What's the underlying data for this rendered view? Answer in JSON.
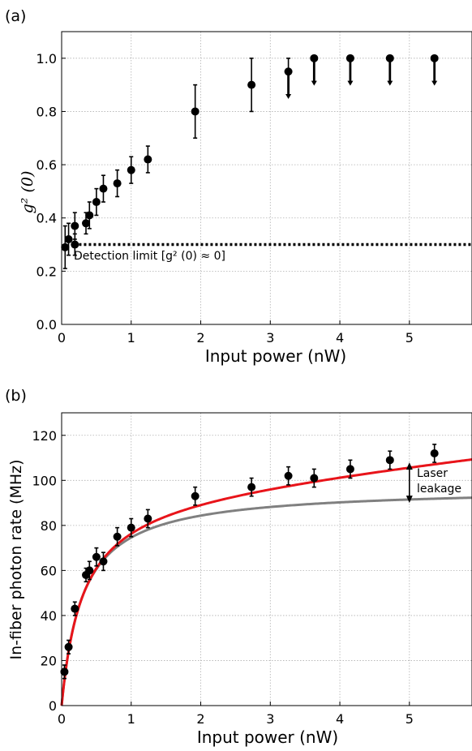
{
  "colors": {
    "axis": "#000000",
    "grid": "#b0b0b0",
    "marker": "#000000",
    "fit_total": "#e8141a",
    "fit_single": "#808080"
  },
  "chart_data": [
    {
      "panel_label": "(a)",
      "type": "scatter",
      "xlabel": "Input power (nW)",
      "ylabel": "g² (0)",
      "xlim": [
        0,
        5.9
      ],
      "ylim": [
        0.0,
        1.1
      ],
      "xticks": [
        "0",
        "1",
        "2",
        "3",
        "4",
        "5"
      ],
      "yticks": [
        "0.0",
        "0.2",
        "0.4",
        "0.6",
        "0.8",
        "1.0"
      ],
      "grid": true,
      "points": [
        {
          "x": 0.05,
          "y": 0.29,
          "err": 0.08
        },
        {
          "x": 0.1,
          "y": 0.32,
          "err": 0.06
        },
        {
          "x": 0.19,
          "y": 0.37,
          "err": 0.05
        },
        {
          "x": 0.19,
          "y": 0.3,
          "err": 0.04
        },
        {
          "x": 0.35,
          "y": 0.38,
          "err": 0.04
        },
        {
          "x": 0.4,
          "y": 0.41,
          "err": 0.05
        },
        {
          "x": 0.5,
          "y": 0.46,
          "err": 0.05
        },
        {
          "x": 0.6,
          "y": 0.51,
          "err": 0.05
        },
        {
          "x": 0.8,
          "y": 0.53,
          "err": 0.05
        },
        {
          "x": 1.0,
          "y": 0.58,
          "err": 0.05
        },
        {
          "x": 1.24,
          "y": 0.62,
          "err": 0.05
        },
        {
          "x": 1.92,
          "y": 0.8,
          "err": 0.1
        },
        {
          "x": 2.73,
          "y": 0.9,
          "err": 0.1
        }
      ],
      "upper_limit_points": [
        {
          "x": 3.26,
          "y": 0.95,
          "err_up": 0.05,
          "down": 0.1
        },
        {
          "x": 3.63,
          "y": 1.0,
          "down": 0.1
        },
        {
          "x": 4.15,
          "y": 1.0,
          "down": 0.1
        },
        {
          "x": 4.72,
          "y": 1.0,
          "down": 0.1
        },
        {
          "x": 5.36,
          "y": 1.0,
          "down": 0.1
        }
      ],
      "detection_limit": {
        "y": 0.3,
        "label": "Detection limit [g² (0) ≈ 0]"
      }
    },
    {
      "panel_label": "(b)",
      "type": "scatter",
      "xlabel": "Input power (nW)",
      "ylabel": "In-fiber photon rate (MHz)",
      "xlim": [
        0,
        5.9
      ],
      "ylim": [
        0,
        130
      ],
      "xticks": [
        "0",
        "1",
        "2",
        "3",
        "4",
        "5"
      ],
      "yticks": [
        "0",
        "20",
        "40",
        "60",
        "80",
        "100",
        "120"
      ],
      "grid": true,
      "points": [
        {
          "x": 0.04,
          "y": 15,
          "err": 3
        },
        {
          "x": 0.1,
          "y": 26,
          "err": 3
        },
        {
          "x": 0.19,
          "y": 43,
          "err": 3
        },
        {
          "x": 0.35,
          "y": 58,
          "err": 3
        },
        {
          "x": 0.4,
          "y": 60,
          "err": 4
        },
        {
          "x": 0.5,
          "y": 66,
          "err": 4
        },
        {
          "x": 0.6,
          "y": 64,
          "err": 4
        },
        {
          "x": 0.8,
          "y": 75,
          "err": 4
        },
        {
          "x": 1.0,
          "y": 79,
          "err": 4
        },
        {
          "x": 1.24,
          "y": 83,
          "err": 4
        },
        {
          "x": 1.92,
          "y": 93,
          "err": 4
        },
        {
          "x": 2.73,
          "y": 97,
          "err": 4
        },
        {
          "x": 3.26,
          "y": 102,
          "err": 4
        },
        {
          "x": 3.63,
          "y": 101,
          "err": 4
        },
        {
          "x": 4.15,
          "y": 105,
          "err": 4
        },
        {
          "x": 4.72,
          "y": 109,
          "err": 4
        },
        {
          "x": 5.36,
          "y": 112,
          "err": 4
        }
      ],
      "fits": [
        {
          "model": "saturation_plus_linear",
          "Rsat": 95,
          "Psat": 0.3,
          "slope": 3.2,
          "color": "#e8141a"
        },
        {
          "model": "saturation",
          "Rsat": 97,
          "Psat": 0.3,
          "slope": 0,
          "color": "#808080"
        }
      ],
      "annotation": {
        "lines": [
          "Laser",
          "leakage"
        ],
        "x": 5.0,
        "y_top": 108,
        "y_bottom": 90
      }
    }
  ]
}
